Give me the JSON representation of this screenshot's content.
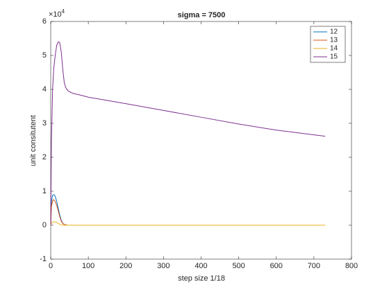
{
  "chart_data": {
    "type": "line",
    "title": "sigma = 7500",
    "xlabel": "step size 1/18",
    "ylabel": "unit consitutent",
    "y_exponent": {
      "base": "×10",
      "power": "4"
    },
    "x": [
      0,
      2,
      5,
      8,
      12,
      16,
      20,
      24,
      28,
      32,
      36,
      40,
      45,
      50,
      60,
      80,
      100,
      200,
      300,
      400,
      500,
      600,
      700,
      730
    ],
    "series": [
      {
        "name": "12",
        "color": "#0072BD",
        "values": [
          0,
          0.7,
          0.88,
          0.9,
          0.85,
          0.7,
          0.5,
          0.3,
          0.15,
          0.06,
          0.02,
          0.01,
          0,
          0,
          0,
          0,
          0,
          0,
          0,
          0,
          0,
          0,
          0,
          0
        ]
      },
      {
        "name": "13",
        "color": "#D95319",
        "values": [
          0,
          0.55,
          0.72,
          0.75,
          0.7,
          0.58,
          0.42,
          0.25,
          0.12,
          0.05,
          0.02,
          0.01,
          0,
          0,
          0,
          0,
          0,
          0,
          0,
          0,
          0,
          0,
          0,
          0
        ]
      },
      {
        "name": "14",
        "color": "#EDB120",
        "values": [
          0,
          0.05,
          0.09,
          0.1,
          0.1,
          0.08,
          0.05,
          0.03,
          0.01,
          0,
          0,
          0,
          0,
          0,
          0,
          0,
          0,
          0,
          0,
          0,
          0,
          0,
          0,
          0
        ]
      },
      {
        "name": "15",
        "color": "#7E2F8E",
        "values": [
          0,
          2.5,
          4.0,
          4.6,
          5.0,
          5.3,
          5.4,
          5.38,
          5.1,
          4.6,
          4.2,
          4.05,
          3.97,
          3.93,
          3.88,
          3.83,
          3.77,
          3.58,
          3.38,
          3.18,
          2.98,
          2.8,
          2.66,
          2.62
        ]
      }
    ],
    "xlim": [
      0,
      800
    ],
    "xticks": [
      0,
      100,
      200,
      300,
      400,
      500,
      600,
      700,
      800
    ],
    "ylim": [
      -1,
      6
    ],
    "yticks": [
      -1,
      0,
      1,
      2,
      3,
      4,
      5,
      6
    ],
    "legend": "top-right",
    "grid": false
  }
}
